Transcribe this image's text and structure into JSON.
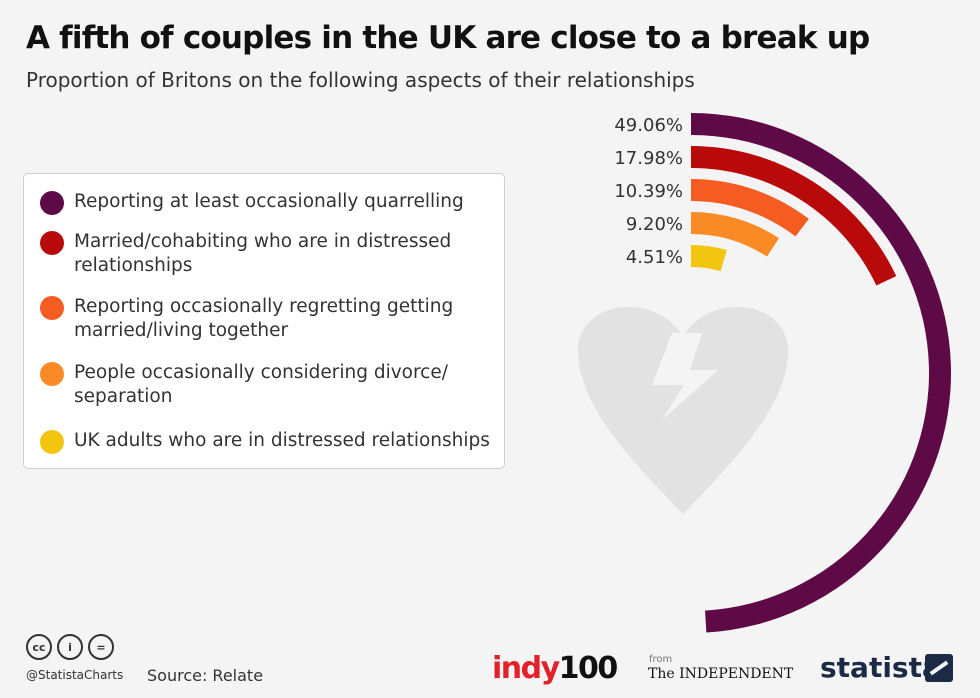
{
  "chart_data": {
    "type": "radial-bar",
    "title": "A fifth of couples in the UK are close to a break up",
    "subtitle": "Proportion of Britons on the following aspects of their relationships",
    "unit": "%",
    "series": [
      {
        "name": "Reporting at least occasionally quarrelling",
        "value": 49.06,
        "label": "49.06%",
        "color": "#5e0a47"
      },
      {
        "name": "Married/cohabiting who are in distressed relationships",
        "value": 17.98,
        "label": "17.98%",
        "color": "#b80a0a"
      },
      {
        "name": "Reporting occasionally regretting getting married/living together",
        "value": 10.39,
        "label": "10.39%",
        "color": "#f55c22"
      },
      {
        "name": "People occasionally considering divorce/ separation",
        "value": 9.2,
        "label": "9.20%",
        "color": "#f98a26"
      },
      {
        "name": "UK adults who are in distressed relationships",
        "value": 4.51,
        "label": "4.51%",
        "color": "#f2c511"
      }
    ],
    "decoration": "broken-heart-icon"
  },
  "footer": {
    "source": "Source: Relate",
    "handle": "@StatistaCharts",
    "license_icons": [
      "cc",
      "i",
      "="
    ],
    "logo_indy_word": "indy",
    "logo_indy_num": "100",
    "logo_from": "from",
    "logo_independent": "The INDEPENDENT",
    "logo_statista": "statista"
  }
}
